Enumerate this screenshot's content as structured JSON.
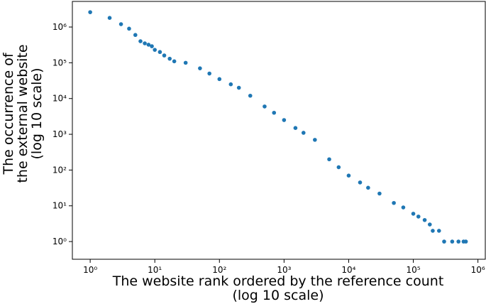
{
  "chart_data": {
    "type": "scatter",
    "x_label": [
      "The website rank ordered by the reference count",
      "(log 10 scale)"
    ],
    "y_label": [
      "The occurrence of",
      "the external website",
      "(log 10 scale)"
    ],
    "xscale": "log",
    "yscale": "log",
    "color": "#1f77b4",
    "xlim": [
      0.53,
      1300000
    ],
    "ylim": [
      0.32,
      5200000
    ],
    "xticks": [
      {
        "value": 1,
        "label": "10⁰"
      },
      {
        "value": 10,
        "label": "10¹"
      },
      {
        "value": 100,
        "label": "10²"
      },
      {
        "value": 1000,
        "label": "10³"
      },
      {
        "value": 10000,
        "label": "10⁴"
      },
      {
        "value": 100000,
        "label": "10⁵"
      },
      {
        "value": 1000000,
        "label": "10⁶"
      }
    ],
    "yticks": [
      {
        "value": 1,
        "label": "10⁰"
      },
      {
        "value": 10,
        "label": "10¹"
      },
      {
        "value": 100,
        "label": "10²"
      },
      {
        "value": 1000,
        "label": "10³"
      },
      {
        "value": 10000,
        "label": "10⁴"
      },
      {
        "value": 100000,
        "label": "10⁵"
      },
      {
        "value": 1000000,
        "label": "10⁶"
      }
    ],
    "x": [
      1,
      2,
      3,
      4,
      5,
      6,
      7,
      8,
      9,
      10,
      12,
      14,
      17,
      20,
      30,
      50,
      70,
      100,
      150,
      200,
      300,
      500,
      700,
      1000,
      1500,
      2000,
      3000,
      5000,
      7000,
      10000,
      15000,
      20000,
      30000,
      50000,
      70000,
      100000,
      120000,
      150000,
      180000,
      200000,
      250000,
      300000,
      400000,
      500000,
      600000,
      650000
    ],
    "y": [
      2600000,
      1800000,
      1200000,
      900000,
      600000,
      400000,
      350000,
      320000,
      290000,
      230000,
      200000,
      160000,
      130000,
      110000,
      100000,
      70000,
      50000,
      35000,
      25000,
      20000,
      12000,
      6000,
      4000,
      2500,
      1500,
      1100,
      700,
      200,
      120,
      70,
      45,
      32,
      22,
      12,
      9,
      6,
      5,
      4,
      3,
      2,
      2,
      1,
      1,
      1,
      1,
      1
    ]
  }
}
